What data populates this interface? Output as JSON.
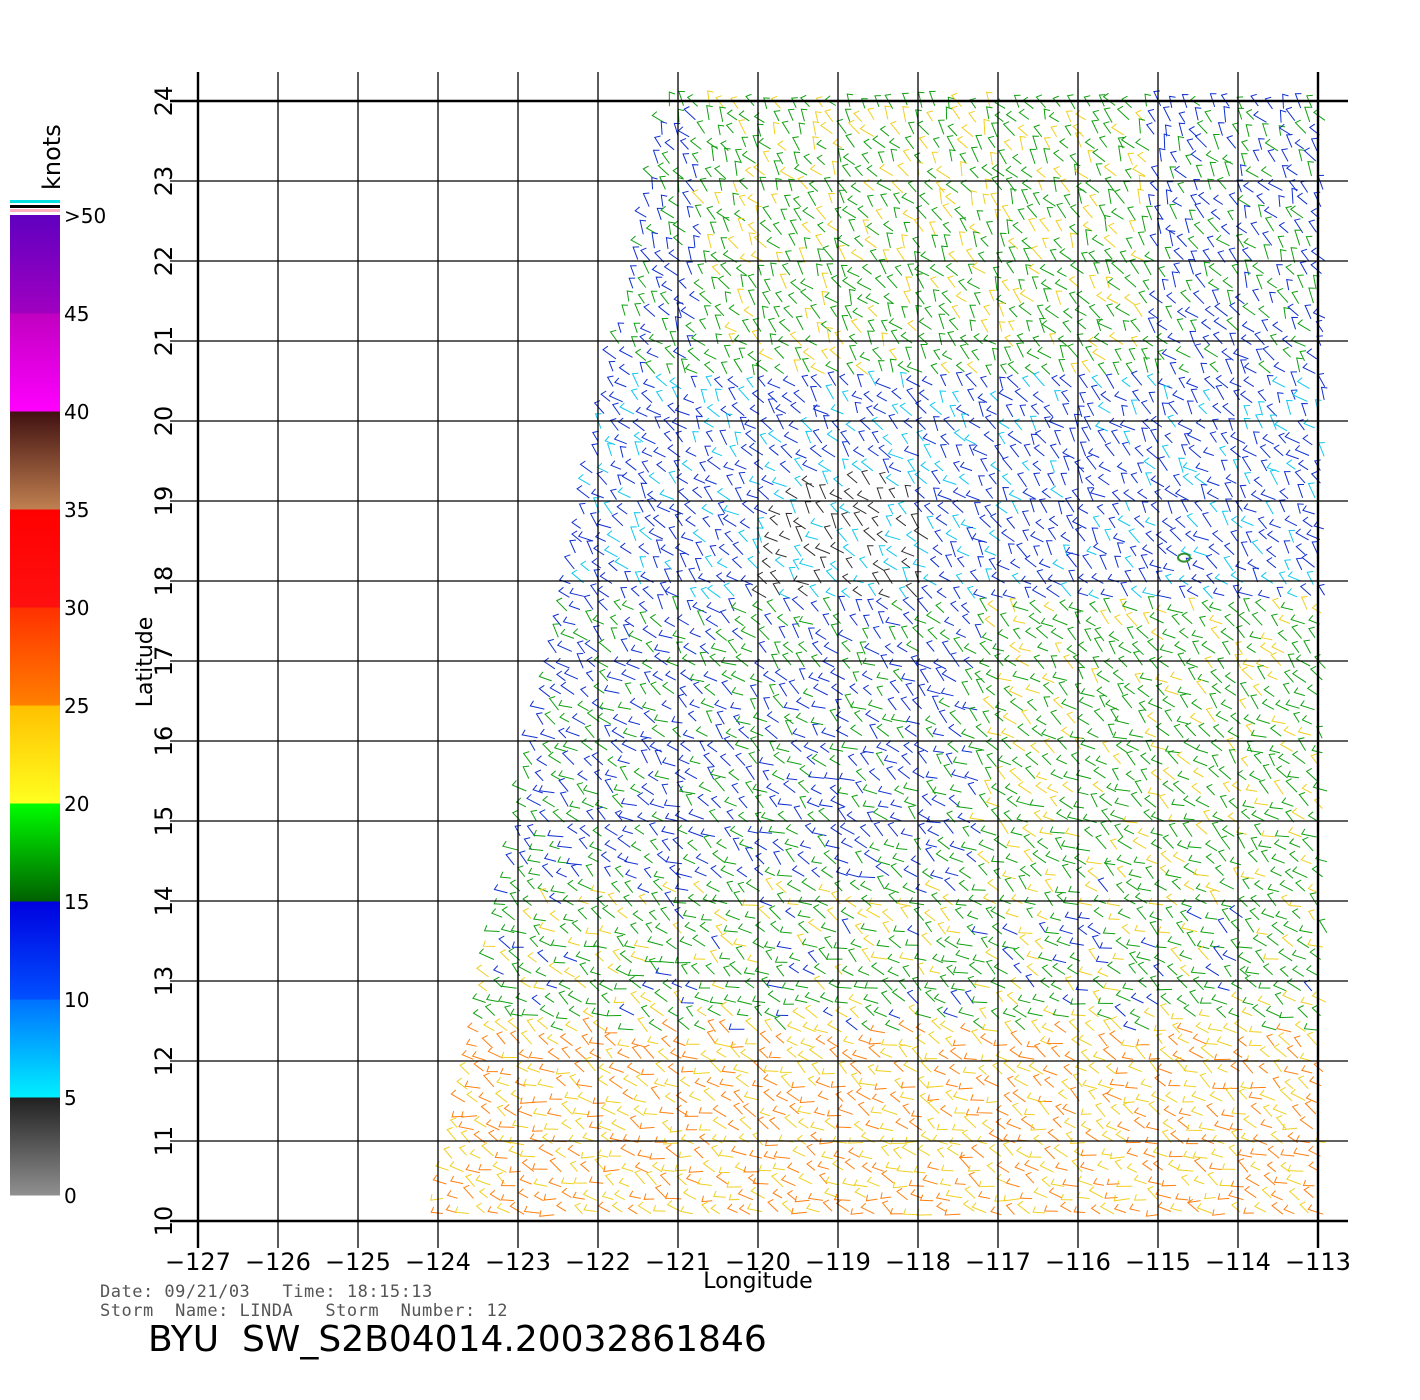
{
  "map": {
    "lon_ticks": [
      "−127",
      "−126",
      "−125",
      "−124",
      "−123",
      "−122",
      "−121",
      "−120",
      "−119",
      "−118",
      "−117",
      "−116",
      "−115",
      "−114",
      "−113"
    ],
    "lat_ticks": [
      "10",
      "11",
      "12",
      "13",
      "14",
      "15",
      "16",
      "17",
      "18",
      "19",
      "20",
      "21",
      "22",
      "23",
      "24"
    ],
    "lon_range": [
      -127,
      -112.6
    ],
    "lat_range": [
      10,
      24
    ],
    "grid": true,
    "x_label": "Longitude",
    "y_label": "Latitude",
    "storm_center": {
      "lon": -114.75,
      "lat": 18.33
    }
  },
  "colorbar": {
    "unit": "knots",
    "labels": [
      ">50",
      "45",
      "40",
      "35",
      "30",
      "25",
      "20",
      "15",
      "10",
      "5",
      "0"
    ],
    "bins": [
      {
        "from": 0,
        "to": 5,
        "colors": [
          "#909090",
          "#202020"
        ]
      },
      {
        "from": 5,
        "to": 10,
        "colors": [
          "#00f0ff",
          "#0070ff"
        ]
      },
      {
        "from": 10,
        "to": 15,
        "colors": [
          "#0050ff",
          "#0000e0"
        ]
      },
      {
        "from": 15,
        "to": 20,
        "colors": [
          "#006000",
          "#00ff00"
        ]
      },
      {
        "from": 20,
        "to": 25,
        "colors": [
          "#ffff20",
          "#ffc000"
        ]
      },
      {
        "from": 25,
        "to": 30,
        "colors": [
          "#ff8000",
          "#ff3000"
        ]
      },
      {
        "from": 30,
        "to": 35,
        "colors": [
          "#ff1010",
          "#ff0000"
        ]
      },
      {
        "from": 35,
        "to": 40,
        "colors": [
          "#c08050",
          "#401010"
        ]
      },
      {
        "from": 40,
        "to": 45,
        "colors": [
          "#ff00ff",
          "#c000c0"
        ]
      },
      {
        "from": 45,
        "to": 50,
        "colors": [
          "#a000c0",
          "#6000c0"
        ]
      }
    ]
  },
  "footer": {
    "date_line": "Date: 09/21/03   Time: 18:15:13",
    "storm_line": "Storm  Name: LINDA   Storm  Number: 12",
    "product": "BYU  SW_S2B04014.20032861846"
  }
}
